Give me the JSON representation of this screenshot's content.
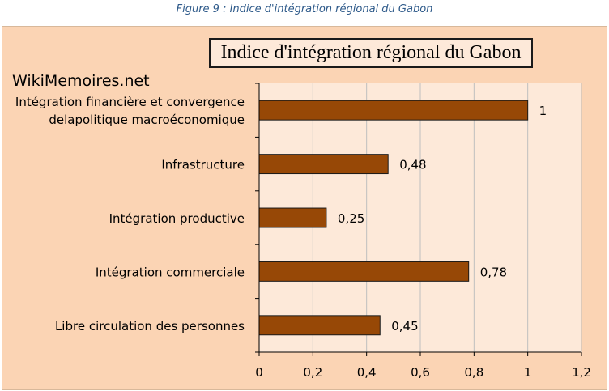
{
  "caption": "Figure 9 : Indice d'intégration régional du Gabon",
  "watermark": "WikiMemoires.net",
  "chart_data": {
    "type": "bar",
    "orientation": "horizontal",
    "title": "Indice d'intégration régional du Gabon",
    "categories": [
      [
        "Intégration financière et convergence",
        "delapolitique macroéconomique"
      ],
      [
        "Infrastructure"
      ],
      [
        "Intégration productive"
      ],
      [
        "Intégration commerciale"
      ],
      [
        "Libre circulation des personnes"
      ]
    ],
    "values": [
      1,
      0.48,
      0.25,
      0.78,
      0.45
    ],
    "value_labels": [
      "1",
      "0,48",
      "0,25",
      "0,78",
      "0,45"
    ],
    "xlim": [
      0,
      1.2
    ],
    "ticks": [
      0,
      0.2,
      0.4,
      0.6,
      0.8,
      1,
      1.2
    ],
    "tick_labels": [
      "0",
      "0,2",
      "0,4",
      "0,6",
      "0,8",
      "1",
      "1,2"
    ],
    "xlabel": "",
    "ylabel": "",
    "grid": "vertical",
    "colors": {
      "bar_fill": "#974806",
      "bar_stroke": "#1a1a1a",
      "plot_bg": "#fde9d9",
      "chart_bg": "#fbd4b4",
      "grid": "#bfbfbf",
      "axis": "#000000",
      "caption": "#2e5a8a"
    }
  }
}
